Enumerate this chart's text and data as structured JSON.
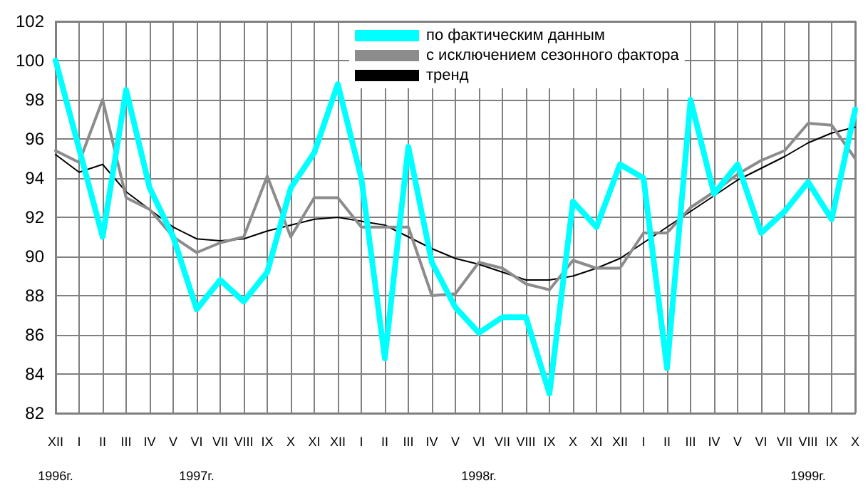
{
  "chart_data": {
    "type": "line",
    "categories": [
      "XII\n1996г.",
      "I",
      "II",
      "III",
      "IV",
      "V",
      "VI\n1997г.",
      "VII",
      "VIII",
      "IX",
      "X",
      "XI",
      "XII",
      "I",
      "II",
      "III",
      "IV",
      "V",
      "VI\n1998г.",
      "VII",
      "VIII",
      "IX",
      "X",
      "XI",
      "XII",
      "I",
      "II",
      "III",
      "IV",
      "V",
      "VI",
      "VII",
      "VIII\n1999г.",
      "IX",
      "X"
    ],
    "series": [
      {
        "name": "по фактическим данным",
        "color": "#00ffff",
        "values": [
          100,
          95.5,
          91,
          98.5,
          93.5,
          91,
          87.3,
          88.8,
          87.7,
          89.2,
          93.5,
          95.3,
          98.8,
          94,
          84.8,
          95.6,
          89.7,
          87.4,
          86.1,
          86.9,
          86.9,
          83,
          92.8,
          91.5,
          94.7,
          94,
          84.3,
          98,
          93.2,
          94.7,
          91.2,
          92.3,
          93.8,
          91.9,
          97.5
        ]
      },
      {
        "name": "с исключением сезонного фактора",
        "color": "#8c8c8c",
        "values": [
          95.4,
          94.8,
          98,
          93,
          92.4,
          91,
          90.2,
          90.7,
          91,
          94.1,
          91,
          93,
          93,
          91.5,
          91.5,
          91.5,
          88,
          88.1,
          89.7,
          89.4,
          88.6,
          88.3,
          89.8,
          89.4,
          89.4,
          91.2,
          91.2,
          92.5,
          93.3,
          94.2,
          94.9,
          95.4,
          96.8,
          96.7,
          95
        ]
      },
      {
        "name": "тренд",
        "color": "#000000",
        "values": [
          95.2,
          94.3,
          94.7,
          93.3,
          92.4,
          91.5,
          90.9,
          90.8,
          90.9,
          91.3,
          91.6,
          91.9,
          92,
          91.8,
          91.6,
          91,
          90.4,
          89.9,
          89.6,
          89.2,
          88.8,
          88.8,
          89,
          89.4,
          89.9,
          90.7,
          91.5,
          92.3,
          93.1,
          93.9,
          94.5,
          95.1,
          95.8,
          96.3,
          96.6
        ]
      }
    ],
    "ylim": [
      82,
      102
    ],
    "yticks": [
      82,
      84,
      86,
      88,
      90,
      92,
      94,
      96,
      98,
      100,
      102
    ],
    "grid": true,
    "legend": "top",
    "marker": "none",
    "line_style": "solid"
  }
}
